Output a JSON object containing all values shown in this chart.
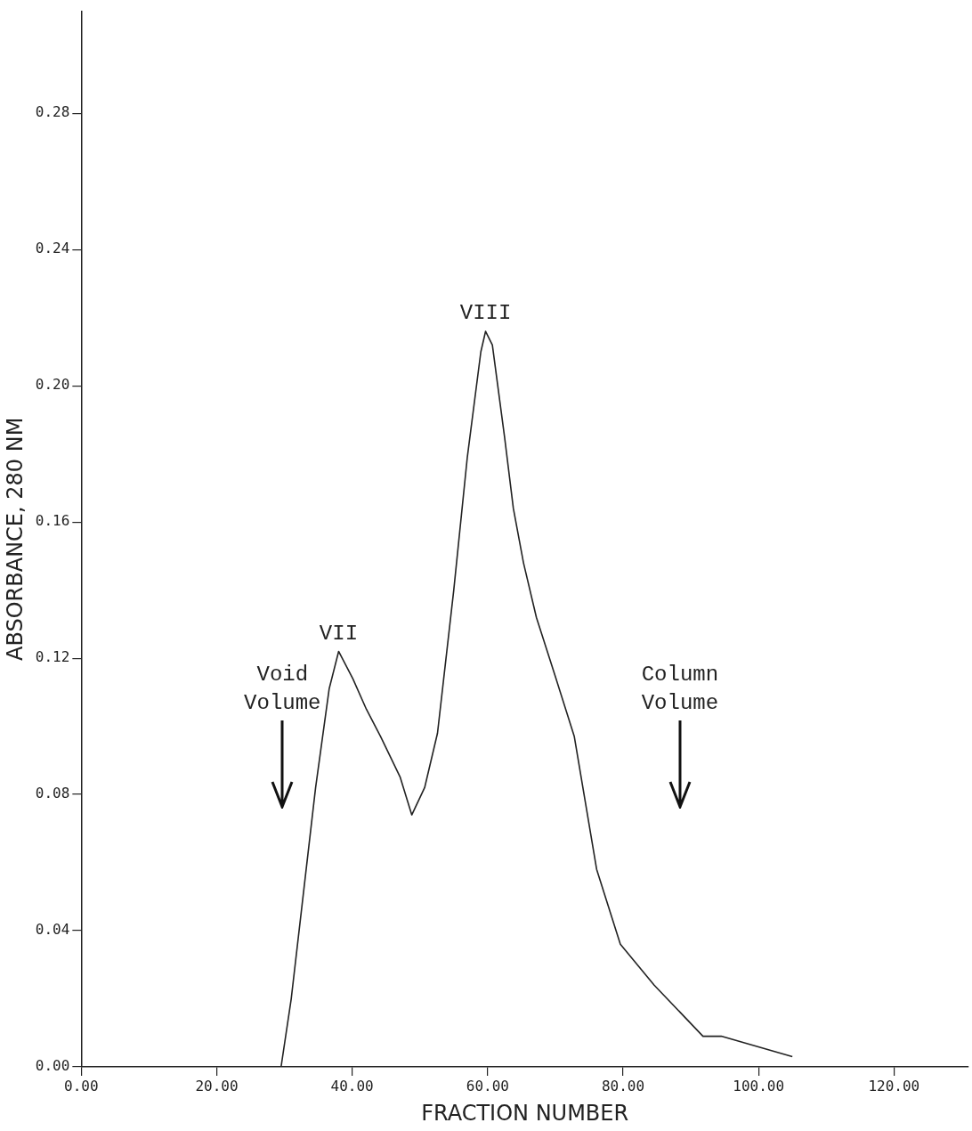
{
  "chart_data": {
    "type": "line",
    "xlabel": "FRACTION NUMBER",
    "ylabel": "ABSORBANCE, 280 NM",
    "x": [
      29.5,
      31,
      34.6,
      36.6,
      38,
      40.1,
      42.1,
      44.2,
      47.1,
      48.8,
      50.7,
      52.6,
      55,
      57,
      59,
      59.7,
      60.7,
      62.5,
      63.8,
      65.3,
      67.2,
      70.1,
      72.8,
      76.1,
      79.6,
      84.6,
      91.8,
      94.5,
      105
    ],
    "series": [
      {
        "color": "#222222",
        "values": [
          0,
          0.02,
          0.082,
          0.111,
          0.122,
          0.114,
          0.105,
          0.097,
          0.085,
          0.074,
          0.082,
          0.098,
          0.14,
          0.179,
          0.21,
          0.216,
          0.212,
          0.185,
          0.164,
          0.148,
          0.132,
          0.114,
          0.097,
          0.058,
          0.036,
          0.024,
          0.009,
          0.009,
          0.003
        ]
      }
    ],
    "xlim": [
      0,
      131
    ],
    "ylim": [
      0,
      0.31
    ],
    "xticks": [
      {
        "value": 0,
        "label": "0.00"
      },
      {
        "value": 20,
        "label": "20.00"
      },
      {
        "value": 40,
        "label": "40.00"
      },
      {
        "value": 60,
        "label": "60.00"
      },
      {
        "value": 80,
        "label": "80.00"
      },
      {
        "value": 100,
        "label": "100.00"
      },
      {
        "value": 120,
        "label": "120.00"
      }
    ],
    "yticks": [
      {
        "value": 0,
        "label": "0.00"
      },
      {
        "value": 0.04,
        "label": "0.04"
      },
      {
        "value": 0.08,
        "label": "0.08"
      },
      {
        "value": 0.12,
        "label": "0.12"
      },
      {
        "value": 0.16,
        "label": "0.16"
      },
      {
        "value": 0.2,
        "label": "0.20"
      },
      {
        "value": 0.24,
        "label": "0.24"
      },
      {
        "value": 0.28,
        "label": "0.28"
      }
    ],
    "grid": false,
    "legend": false,
    "marker": "none",
    "line_style": "solid",
    "ref_lines": [
      {
        "axis": "x",
        "value": 29.7,
        "label": "Void Volume"
      },
      {
        "axis": "x",
        "value": 88.4,
        "label": "Column Volume"
      }
    ],
    "annotations": [
      {
        "text": "VII",
        "x": 38,
        "y": 0.122
      },
      {
        "text": "VIII",
        "x": 59.7,
        "y": 0.216
      }
    ]
  }
}
